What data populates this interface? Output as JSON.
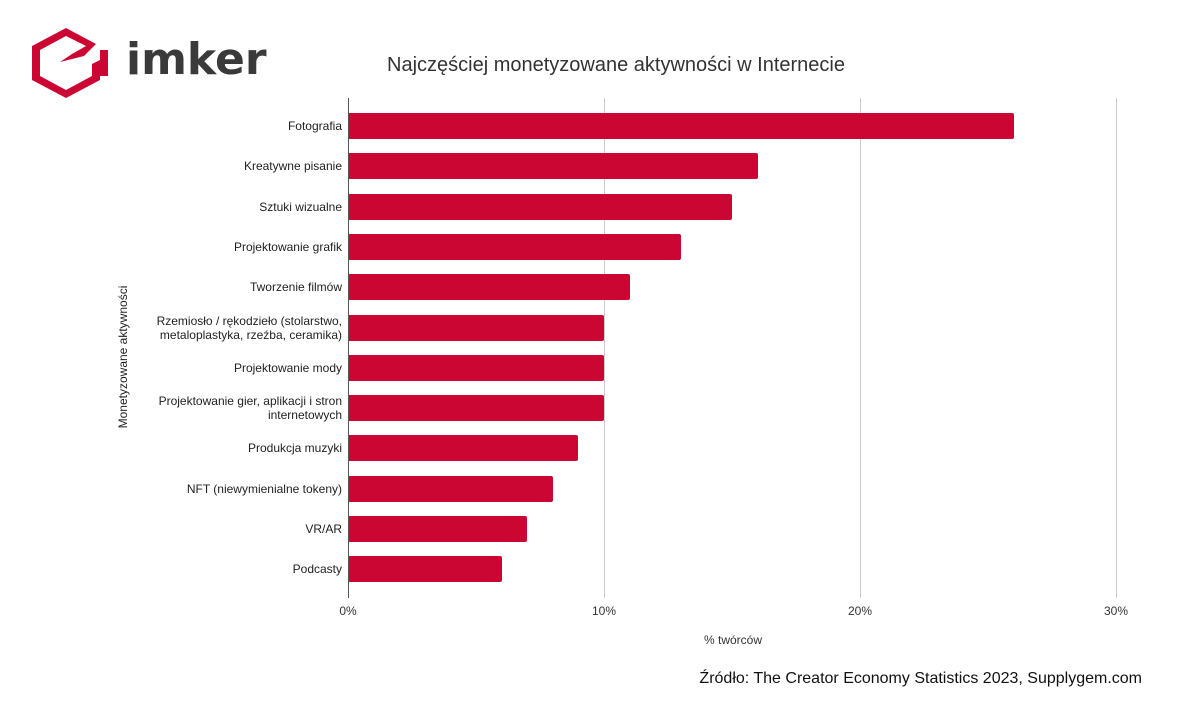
{
  "brand": {
    "logo_text": "imker",
    "logo_color": "#cc0633",
    "text_color": "#3a3a3a"
  },
  "chart": {
    "title": "Najczęściej monetyzowane aktywności w Internecie",
    "xlabel": "% twórców",
    "ylabel": "Monetyzowane aktywności",
    "ticks": [
      "0%",
      "10%",
      "20%",
      "30%"
    ],
    "source": "Źródło: The Creator Economy Statistics 2023, Supplygem.com",
    "bar_color": "#cc0633"
  },
  "chart_data": {
    "type": "bar",
    "orientation": "horizontal",
    "title": "Najczęściej monetyzowane aktywności w Internecie",
    "xlabel": "% twórców",
    "ylabel": "Monetyzowane aktywności",
    "xlim": [
      0,
      30
    ],
    "x_ticks": [
      "0%",
      "10%",
      "20%",
      "30%"
    ],
    "grid": true,
    "legend": null,
    "categories": [
      "Fotografia",
      "Kreatywne pisanie",
      "Sztuki wizualne",
      "Projektowanie grafik",
      "Tworzenie filmów",
      "Rzemiosło / rękodzieło (stolarstwo, metaloplastyka, rzeźba, ceramika)",
      "Projektowanie mody",
      "Projektowanie gier, aplikacji i stron internetowych",
      "Produkcja muzyki",
      "NFT (niewymienialne tokeny)",
      "VR/AR",
      "Podcasty"
    ],
    "values": [
      26,
      16,
      15,
      13,
      11,
      10,
      10,
      10,
      9,
      8,
      7,
      6
    ],
    "annotations": [
      "Źródło: The Creator Economy Statistics 2023, Supplygem.com"
    ]
  }
}
